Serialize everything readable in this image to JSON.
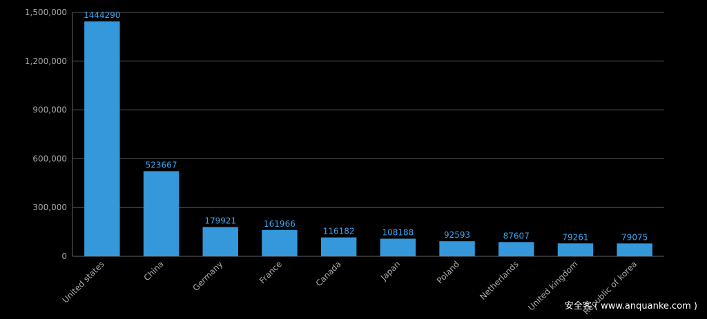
{
  "chart_data": {
    "type": "bar",
    "categories": [
      "United states",
      "China",
      "Germany",
      "France",
      "Canada",
      "Japan",
      "Poland",
      "Netherlands",
      "United kingdom",
      "Republic of korea"
    ],
    "values": [
      1444290,
      523667,
      179921,
      161966,
      116182,
      108188,
      92593,
      87607,
      79261,
      79075
    ],
    "color": "#3498db",
    "ylim": [
      0,
      1500000
    ],
    "yticks": [
      0,
      {
        "value": 300000,
        "label": "300,000"
      },
      {
        "value": 600000,
        "label": "600,000"
      },
      {
        "value": 900000,
        "label": "900,000"
      },
      {
        "value": 1200000,
        "label": "1,200,000"
      },
      {
        "value": 1500000,
        "label": "1,500,000"
      }
    ],
    "grid": true,
    "watermark": "安全客 ( www.anquanke.com )"
  }
}
